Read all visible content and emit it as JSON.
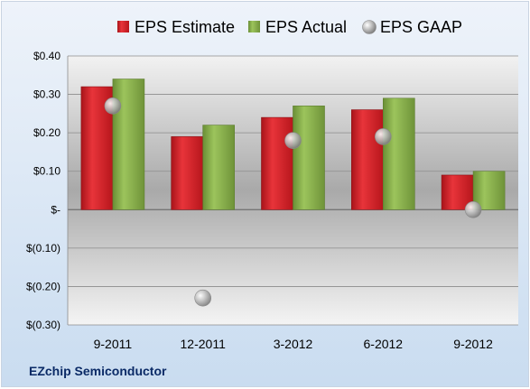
{
  "company": "EZchip Semiconductor",
  "colors": {
    "estimate": "#d11f25",
    "actual": "#86ad4a",
    "gaap": "#a8a8a8"
  },
  "chart_data": {
    "type": "bar",
    "categories": [
      "9-2011",
      "12-2011",
      "3-2012",
      "6-2012",
      "9-2012"
    ],
    "series": [
      {
        "name": "EPS Estimate",
        "kind": "bar",
        "values": [
          0.32,
          0.19,
          0.24,
          0.26,
          0.09
        ]
      },
      {
        "name": "EPS Actual",
        "kind": "bar",
        "values": [
          0.34,
          0.22,
          0.27,
          0.29,
          0.1
        ]
      },
      {
        "name": "EPS GAAP",
        "kind": "scatter",
        "values": [
          0.27,
          -0.23,
          0.18,
          0.19,
          0.0
        ]
      }
    ],
    "ylim": [
      -0.3,
      0.4
    ],
    "yticks": [
      0.4,
      0.3,
      0.2,
      0.1,
      0.0,
      -0.1,
      -0.2,
      -0.3
    ],
    "ytick_labels": [
      "$0.40",
      "$0.30",
      "$0.20",
      "$0.10",
      "$-",
      "$(0.10)",
      "$(0.20)",
      "$(0.30)"
    ],
    "legend": "top",
    "grid": true
  }
}
